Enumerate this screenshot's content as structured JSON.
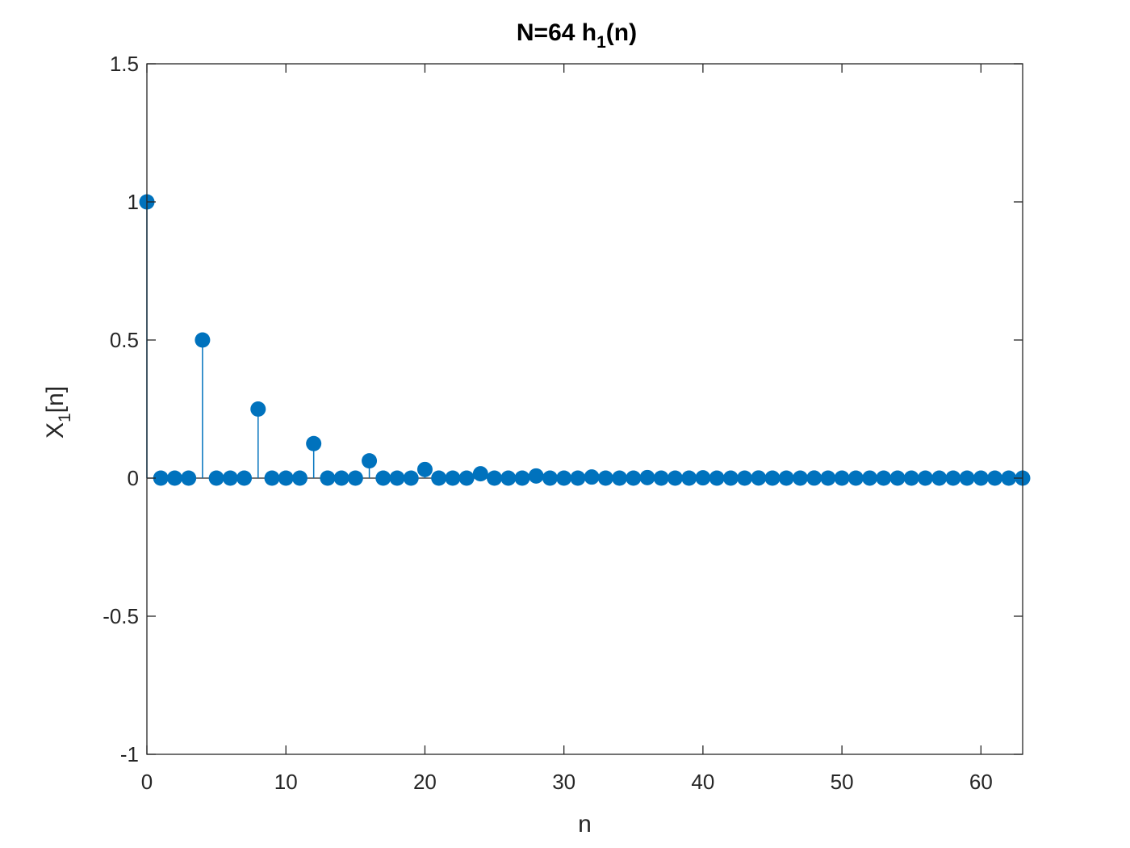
{
  "chart_data": {
    "type": "stem",
    "title": {
      "main": "N=64 h",
      "sub": "1",
      "suffix": "(n)"
    },
    "xlabel": "n",
    "ylabel": {
      "main": "X",
      "sub": "1",
      "suffix": "[n]"
    },
    "xlim": [
      0,
      63
    ],
    "ylim": [
      -1,
      1.5
    ],
    "xticks": [
      0,
      10,
      20,
      30,
      40,
      50,
      60
    ],
    "yticks": [
      -1,
      -0.5,
      0,
      0.5,
      1,
      1.5
    ],
    "xtick_labels": [
      "0",
      "10",
      "20",
      "30",
      "40",
      "50",
      "60"
    ],
    "ytick_labels": [
      "-1",
      "-0.5",
      "0",
      "0.5",
      "1",
      "1.5"
    ],
    "grid": false,
    "color": "#0072BD",
    "x": [
      0,
      1,
      2,
      3,
      4,
      5,
      6,
      7,
      8,
      9,
      10,
      11,
      12,
      13,
      14,
      15,
      16,
      17,
      18,
      19,
      20,
      21,
      22,
      23,
      24,
      25,
      26,
      27,
      28,
      29,
      30,
      31,
      32,
      33,
      34,
      35,
      36,
      37,
      38,
      39,
      40,
      41,
      42,
      43,
      44,
      45,
      46,
      47,
      48,
      49,
      50,
      51,
      52,
      53,
      54,
      55,
      56,
      57,
      58,
      59,
      60,
      61,
      62,
      63
    ],
    "values": [
      1,
      0,
      0,
      0,
      0.5,
      0,
      0,
      0,
      0.25,
      0,
      0,
      0,
      0.125,
      0,
      0,
      0,
      0.0625,
      0,
      0,
      0,
      0.03125,
      0,
      0,
      0,
      0.015625,
      0,
      0,
      0,
      0.0078125,
      0,
      0,
      0,
      0.00390625,
      0,
      0,
      0,
      0.001953125,
      0,
      0,
      0,
      0.0009765625,
      0,
      0,
      0,
      0.00048828125,
      0,
      0,
      0,
      0.000244140625,
      0,
      0,
      0,
      0.0001220703125,
      0,
      0,
      0,
      6.103515625e-05,
      0,
      0,
      0,
      3.0517578125e-05,
      0,
      0,
      0
    ]
  }
}
